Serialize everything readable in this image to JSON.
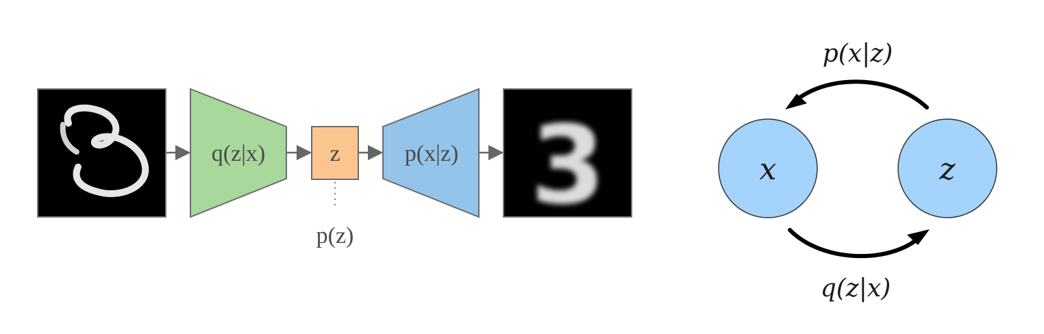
{
  "pipeline": {
    "encoder_label": "q(z|x)",
    "latent_label": "z",
    "decoder_label": "p(x|z)",
    "prior_label": "p(z)",
    "input_digit": "3",
    "output_digit": "3",
    "colors": {
      "encoder": "#a8d89c",
      "latent": "#fbc58f",
      "decoder": "#94c4ea",
      "image_bg": "#000000",
      "stroke": "#6b6b6b"
    }
  },
  "graph": {
    "node_x_label": "x",
    "node_z_label": "z",
    "top_arrow_label": "p(x|z)",
    "bottom_arrow_label": "q(z|x)",
    "node_color": "#a4d3fb"
  }
}
